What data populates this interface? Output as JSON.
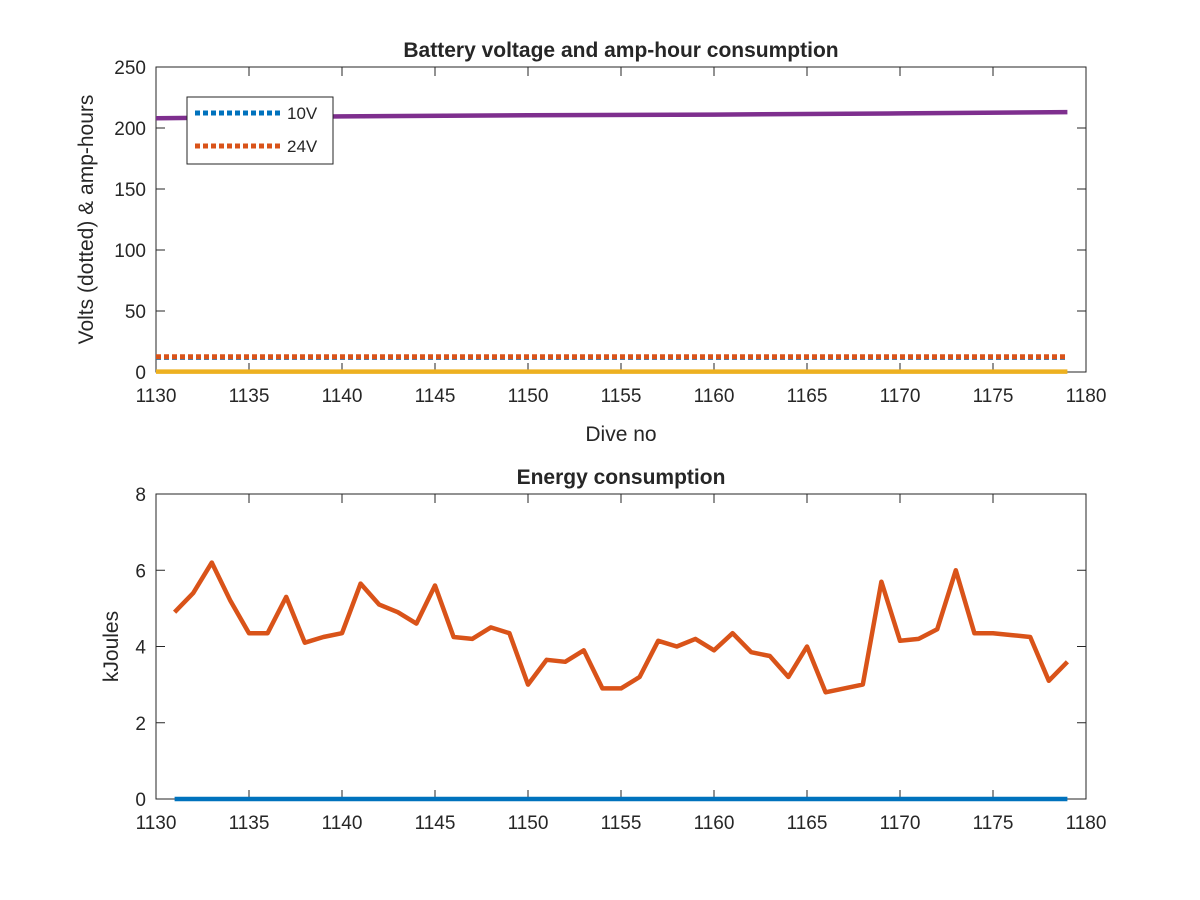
{
  "colors": {
    "blue": "#0072BD",
    "orange": "#D95319",
    "yellow": "#EDB120",
    "purple": "#7E2F8E",
    "axis": "#262626",
    "background": "#ffffff"
  },
  "chart_data": [
    {
      "type": "line",
      "title": "Battery voltage and amp-hour consumption",
      "xlabel": "Dive no",
      "ylabel": "Volts (dotted) & amp-hours",
      "xlim": [
        1130,
        1180
      ],
      "ylim": [
        0,
        250
      ],
      "xticks": [
        1130,
        1135,
        1140,
        1145,
        1150,
        1155,
        1160,
        1165,
        1170,
        1175,
        1180
      ],
      "yticks": [
        0,
        50,
        100,
        150,
        200,
        250
      ],
      "xtick_labels": [
        "1130",
        "1135",
        "1140",
        "1145",
        "1150",
        "1155",
        "1160",
        "1165",
        "1170",
        "1175",
        "1180"
      ],
      "ytick_labels": [
        "0",
        "50",
        "100",
        "150",
        "200",
        "250"
      ],
      "grid": false,
      "legend": {
        "location": "top-left",
        "entries": [
          "10V",
          "24V"
        ]
      },
      "series": [
        {
          "name": "10V",
          "color": "blue",
          "style": "dotted",
          "x": [
            1130,
            1179
          ],
          "y": [
            12,
            12
          ]
        },
        {
          "name": "24V",
          "color": "orange",
          "style": "dotted",
          "x": [
            1130,
            1179
          ],
          "y": [
            12.5,
            12.5
          ]
        },
        {
          "color": "yellow",
          "style": "solid",
          "x": [
            1130,
            1179
          ],
          "y": [
            0.3,
            0.3
          ]
        },
        {
          "color": "purple",
          "style": "solid",
          "x": [
            1130,
            1140,
            1150,
            1160,
            1170,
            1179
          ],
          "y": [
            208,
            209.5,
            210.5,
            211,
            212,
            213
          ]
        }
      ]
    },
    {
      "type": "line",
      "title": "Energy consumption",
      "xlabel": "",
      "ylabel": "kJoules",
      "xlim": [
        1130,
        1180
      ],
      "ylim": [
        0,
        8
      ],
      "xticks": [
        1130,
        1135,
        1140,
        1145,
        1150,
        1155,
        1160,
        1165,
        1170,
        1175,
        1180
      ],
      "yticks": [
        0,
        2,
        4,
        6,
        8
      ],
      "xtick_labels": [
        "1130",
        "1135",
        "1140",
        "1145",
        "1150",
        "1155",
        "1160",
        "1165",
        "1170",
        "1175",
        "1180"
      ],
      "ytick_labels": [
        "0",
        "2",
        "4",
        "6",
        "8"
      ],
      "grid": false,
      "series": [
        {
          "color": "orange",
          "style": "solid",
          "x": [
            1131,
            1132,
            1133,
            1134,
            1135,
            1136,
            1137,
            1138,
            1139,
            1140,
            1141,
            1142,
            1143,
            1144,
            1145,
            1146,
            1147,
            1148,
            1149,
            1150,
            1151,
            1152,
            1153,
            1154,
            1155,
            1156,
            1157,
            1158,
            1159,
            1160,
            1161,
            1162,
            1163,
            1164,
            1165,
            1166,
            1167,
            1168,
            1169,
            1170,
            1171,
            1172,
            1173,
            1174,
            1175,
            1176,
            1177,
            1178,
            1179
          ],
          "y": [
            4.9,
            5.4,
            6.2,
            5.2,
            4.35,
            4.35,
            5.3,
            4.1,
            4.25,
            4.35,
            5.65,
            5.1,
            4.9,
            4.6,
            5.6,
            4.25,
            4.2,
            4.5,
            4.35,
            3.0,
            3.65,
            3.6,
            3.9,
            2.9,
            2.9,
            3.2,
            4.15,
            4.0,
            4.2,
            3.9,
            4.35,
            3.85,
            3.75,
            3.2,
            4.0,
            2.8,
            2.9,
            3.0,
            5.7,
            4.15,
            4.2,
            4.45,
            6.0,
            4.35,
            4.35,
            4.3,
            4.25,
            3.1,
            3.6
          ]
        },
        {
          "color": "blue",
          "style": "solid",
          "x": [
            1131,
            1179
          ],
          "y": [
            0,
            0
          ]
        }
      ]
    }
  ]
}
